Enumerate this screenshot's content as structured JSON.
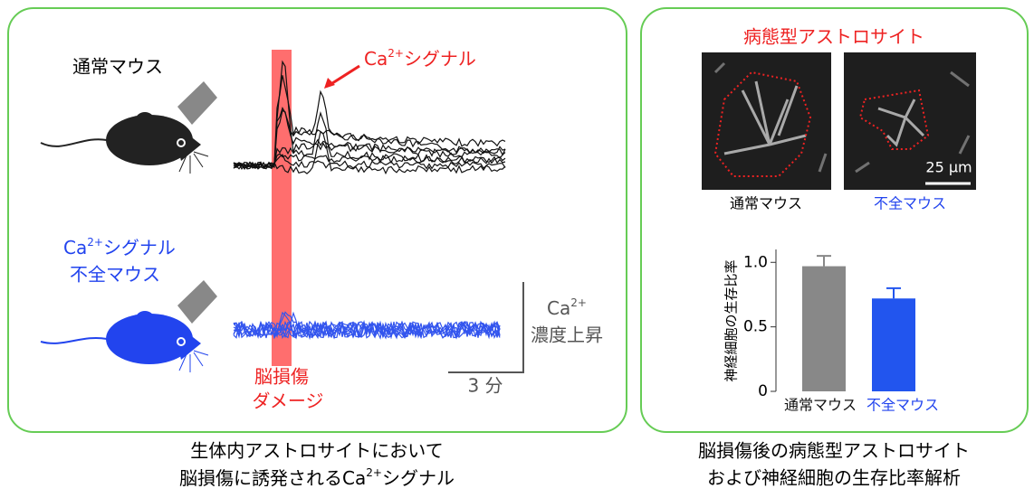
{
  "left_panel": {
    "normal_mouse": "通常マウス",
    "signal_label": {
      "ion": "Ca",
      "charge": "2+",
      "text": "シグナル"
    },
    "deficient_mouse": {
      "line1": {
        "ion": "Ca",
        "charge": "2+",
        "text": "シグナル"
      },
      "line2": "不全マウス"
    },
    "injury": {
      "line1": "脳損傷",
      "line2": "ダメージ"
    },
    "scale": {
      "ion": "Ca",
      "charge": "2+",
      "text": "濃度上昇",
      "time": "3 分"
    }
  },
  "left_caption": {
    "line1": "生体内アストロサイトにおいて",
    "line2": {
      "text": "脳損傷に誘発される",
      "ion": "Ca",
      "charge": "2+",
      "suffix": "シグナル"
    }
  },
  "right_panel": {
    "image_title": "病態型アストロサイト",
    "scale_bar": "25 µm",
    "image_labels": [
      "通常マウス",
      "不全マウス"
    ],
    "chart_data": {
      "type": "bar",
      "ylabel": "神経細胞の生存比率",
      "categories": [
        "通常マウス",
        "不全マウス"
      ],
      "values": [
        0.97,
        0.72
      ],
      "errors": [
        0.08,
        0.08
      ],
      "colors": [
        "#888888",
        "#2255ee"
      ],
      "ylim": [
        0,
        1.1
      ],
      "yticks": [
        0,
        0.5,
        {
          "value": 1,
          "label": "1.0"
        }
      ]
    }
  },
  "right_caption": {
    "line1": "脳損傷後の病態型アストロサイト",
    "line2": "および神経細胞の生存比率解析"
  }
}
